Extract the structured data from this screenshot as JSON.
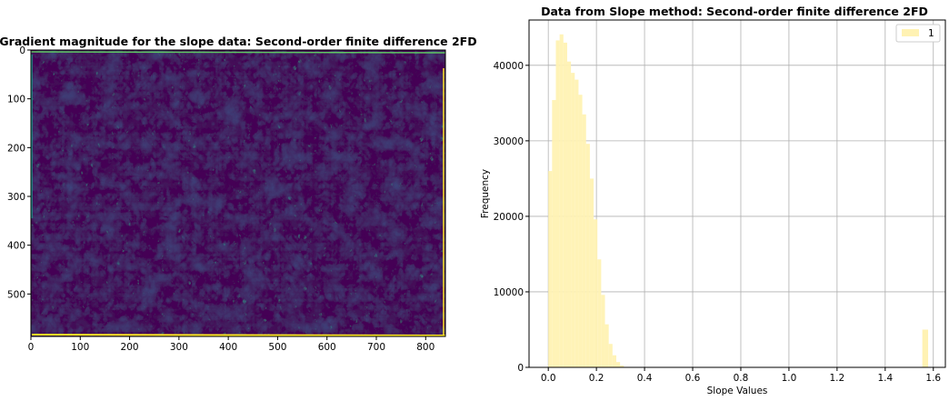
{
  "chart_data": [
    {
      "type": "heatmap",
      "title": "Gradient magnitude for the slope data: Second-order finite difference 2FD",
      "x_ticks": [
        0,
        100,
        200,
        300,
        400,
        500,
        600,
        700,
        800
      ],
      "y_ticks": [
        0,
        100,
        200,
        300,
        400,
        500
      ],
      "xlim": [
        0,
        840
      ],
      "ylim": [
        587,
        0
      ],
      "colormap": [
        "#440154",
        "#3b528b",
        "#21918c",
        "#5ec962",
        "#fde725"
      ]
    },
    {
      "type": "bar",
      "title": "Data from Slope method: Second-order finite difference 2FD",
      "xlabel": "Slope Values",
      "ylabel": "Frequency",
      "x_ticks": [
        0.0,
        0.2,
        0.4,
        0.6,
        0.8,
        1.0,
        1.2,
        1.4,
        1.6
      ],
      "x_tick_labels": [
        "0.0",
        "0.2",
        "0.4",
        "0.6",
        "0.8",
        "1.0",
        "1.2",
        "1.4",
        "1.6"
      ],
      "y_ticks": [
        0,
        10000,
        20000,
        30000,
        40000
      ],
      "y_tick_labels": [
        "0",
        "10000",
        "20000",
        "30000",
        "40000"
      ],
      "xlim": [
        -0.08,
        1.65
      ],
      "ylim": [
        0,
        46000
      ],
      "grid": true,
      "legend_position": "top-right",
      "bar_color": "#fff2b3",
      "series": [
        {
          "name": "1",
          "bin_edges": [
            0.0,
            0.0157,
            0.0314,
            0.0471,
            0.0628,
            0.0785,
            0.0942,
            0.1099,
            0.1256,
            0.1413,
            0.157,
            0.1727,
            0.1884,
            0.2041,
            0.2198,
            0.2355,
            0.2512,
            0.2669,
            0.2826,
            0.2983,
            0.314,
            0.3297,
            0.3454,
            0.3611,
            0.3768,
            0.3925,
            0.4082,
            0.4239,
            0.4396,
            0.4553,
            0.471,
            0.4867,
            0.5024,
            0.5181,
            0.5338,
            0.5495,
            0.5652,
            0.5809,
            0.5966,
            0.6123,
            0.628
          ],
          "counts": [
            26000,
            35400,
            43300,
            44100,
            43000,
            40500,
            39000,
            38100,
            36100,
            33500,
            29600,
            25000,
            19600,
            14300,
            9600,
            5700,
            3100,
            1600,
            700,
            250,
            0,
            0,
            0,
            0,
            0,
            0,
            0,
            0,
            0,
            0,
            0,
            0,
            0,
            0,
            0,
            0,
            0,
            0,
            0,
            0
          ],
          "outlier_bin": {
            "start": 1.5543,
            "end": 1.5708,
            "count": 5000
          }
        }
      ]
    }
  ]
}
